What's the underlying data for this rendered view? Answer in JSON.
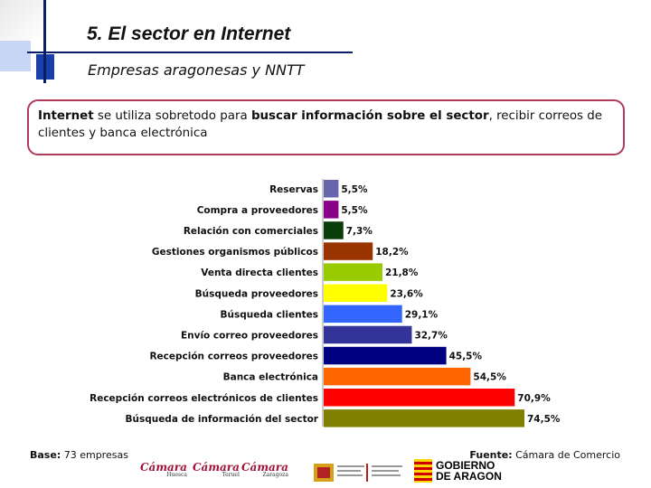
{
  "header": {
    "title": "5. El sector en Internet",
    "subtitle": "Empresas aragonesas y NNTT"
  },
  "summary": {
    "part1_bold": "Internet",
    "part2": " se utiliza sobretodo para ",
    "part3_bold": "buscar información sobre el sector",
    "part4": ", recibir correos de clientes y banca electrónica"
  },
  "chart_data": {
    "type": "bar",
    "orientation": "horizontal",
    "title": "",
    "xlabel": "",
    "ylabel": "",
    "xlim": [
      0,
      100
    ],
    "categories": [
      "Reservas",
      "Compra a proveedores",
      "Relación con comerciales",
      "Gestiones organismos públicos",
      "Venta directa clientes",
      "Búsqueda proveedores",
      "Búsqueda clientes",
      "Envío correo proveedores",
      "Recepción correos proveedores",
      "Banca electrónica",
      "Recepción correos electrónicos de clientes",
      "Búsqueda de información del sector"
    ],
    "values": [
      5.5,
      5.5,
      7.3,
      18.2,
      21.8,
      23.6,
      29.1,
      32.7,
      45.5,
      54.5,
      70.9,
      74.5
    ],
    "value_labels": [
      "5,5%",
      "5,5%",
      "7,3%",
      "18,2%",
      "21,8%",
      "23,6%",
      "29,1%",
      "32,7%",
      "45,5%",
      "54,5%",
      "70,9%",
      "74,5%"
    ],
    "colors": [
      "#6666aa",
      "#880088",
      "#0a3d0a",
      "#993300",
      "#99cc00",
      "#ffff00",
      "#3366ff",
      "#333399",
      "#000080",
      "#ff6600",
      "#ff0000",
      "#808000"
    ]
  },
  "footer": {
    "base_label": "Base:",
    "base_value": " 73 empresas",
    "source_label": "Fuente:",
    "source_value": " Cámara de Comercio"
  },
  "logos": {
    "camara": "Cámara",
    "camara_cities": [
      "Huesca",
      "Teruel",
      "Zaragoza"
    ],
    "gobierno_line1": "GOBIERNO",
    "gobierno_line2": "DE ARAGON"
  }
}
